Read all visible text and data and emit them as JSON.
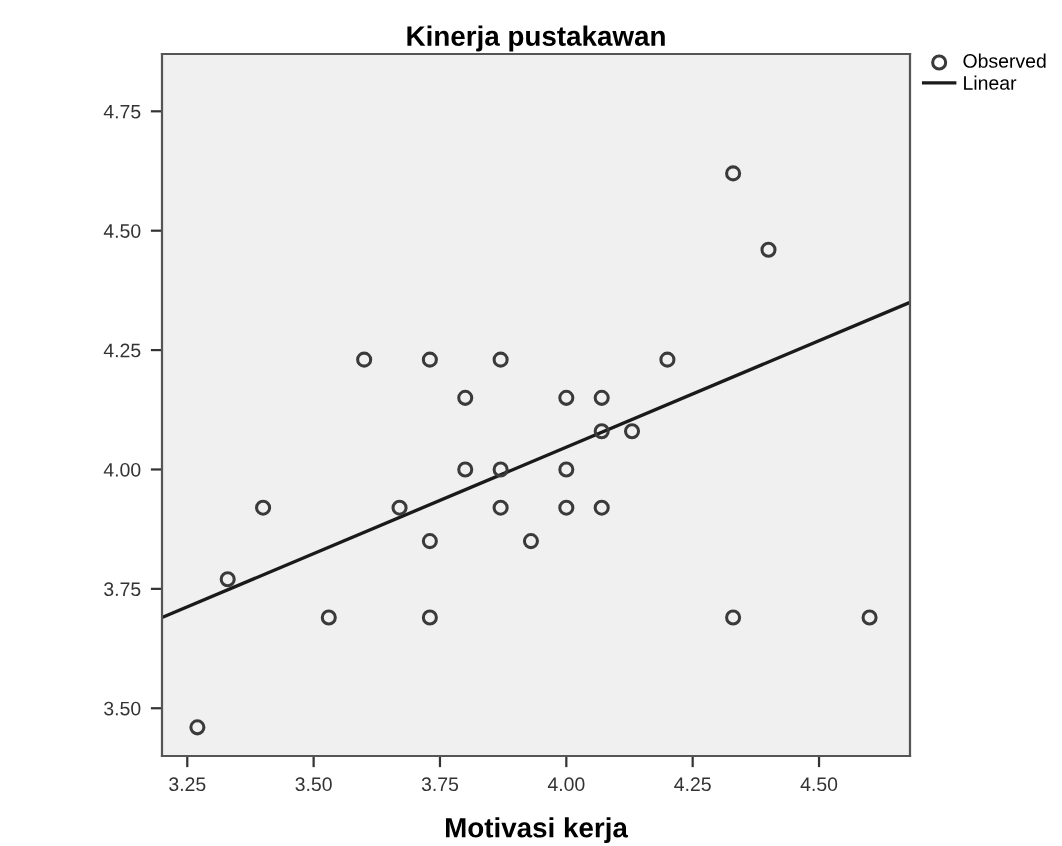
{
  "chart_data": {
    "type": "scatter",
    "title": "Kinerja pustakawan",
    "xlabel": "Motivasi kerja",
    "xlim": [
      3.2,
      4.68
    ],
    "ylim": [
      3.4,
      4.87
    ],
    "xticks": [
      {
        "value": 3.25,
        "label": "3.25"
      },
      {
        "value": 3.5,
        "label": "3.50"
      },
      {
        "value": 3.75,
        "label": "3.75"
      },
      {
        "value": 4.0,
        "label": "4.00"
      },
      {
        "value": 4.25,
        "label": "4.25"
      },
      {
        "value": 4.5,
        "label": "4.50"
      }
    ],
    "yticks": [
      {
        "value": 3.5,
        "label": "3.50"
      },
      {
        "value": 3.75,
        "label": "3.75"
      },
      {
        "value": 4.0,
        "label": "4.00"
      },
      {
        "value": 4.25,
        "label": "4.25"
      },
      {
        "value": 4.5,
        "label": "4.50"
      },
      {
        "value": 4.75,
        "label": "4.75"
      }
    ],
    "grid": false,
    "legend": "top right",
    "series": [
      {
        "name": "Observed",
        "marker": "circle",
        "color": "#3a3a3a",
        "x": [
          3.6,
          3.73,
          3.8,
          3.87,
          4.0,
          4.33,
          4.4,
          4.2,
          4.07,
          4.07,
          4.13,
          3.27,
          3.33,
          3.4,
          3.53,
          3.67,
          3.73,
          3.73,
          3.8,
          3.87,
          3.87,
          3.93,
          4.0,
          4.0,
          4.07,
          4.33,
          4.6
        ],
        "values": [
          4.23,
          4.23,
          4.15,
          4.23,
          4.15,
          4.62,
          4.46,
          4.23,
          4.15,
          4.08,
          4.08,
          3.46,
          3.77,
          3.92,
          3.69,
          3.92,
          3.85,
          3.69,
          4.0,
          4.0,
          3.92,
          3.85,
          4.0,
          3.92,
          3.92,
          3.69,
          3.69
        ]
      },
      {
        "name": "Linear",
        "type": "line",
        "color": "#1a1a1a",
        "x": [
          3.2,
          4.68
        ],
        "values": [
          3.69,
          4.35
        ]
      }
    ]
  }
}
